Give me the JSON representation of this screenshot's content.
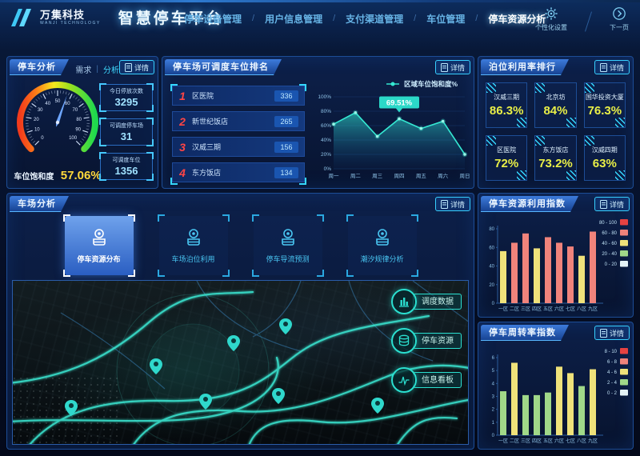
{
  "header": {
    "brand": "万集科技",
    "brand_sub": "WANJI TECHNOLOGY",
    "title": "智慧停车平台",
    "nav_separator": "/",
    "nav": [
      {
        "label": "停车设备管理",
        "active": false
      },
      {
        "label": "用户信息管理",
        "active": false
      },
      {
        "label": "支付渠道管理",
        "active": false
      },
      {
        "label": "车位管理",
        "active": false
      },
      {
        "label": "停车资源分析",
        "active": true
      }
    ],
    "actions": [
      {
        "icon": "gear-icon",
        "label": "个性化设置"
      },
      {
        "icon": "next-page-icon",
        "label": "下一页"
      }
    ]
  },
  "accent_colors": {
    "cyan": "#35d8ff",
    "teal": "#2fe2cc",
    "yellow_value": "#e9ef47",
    "gauge_value_yellow": "#ffd93b",
    "rank_red": "#ff4545"
  },
  "panels": {
    "parking_analysis": {
      "title": "停车分析",
      "tabs": [
        {
          "label": "需求",
          "active": false
        },
        {
          "label": "分析",
          "active": true
        }
      ],
      "tab_separator": "|",
      "detail_label": "详情",
      "gauge": {
        "label": "车位饱和度",
        "value": 57.06,
        "display": "57.06%",
        "min": 0,
        "max": 100
      },
      "stats": [
        {
          "label": "今日停放次数",
          "value": "3295"
        },
        {
          "label": "可调度停车场",
          "value": "31"
        },
        {
          "label": "可调度车位",
          "value": "1356"
        }
      ]
    },
    "dispatch_ranking": {
      "title": "停车场可调度车位排名",
      "detail_label": "详情",
      "items": [
        {
          "rank": "1",
          "name": "区医院",
          "value": "336"
        },
        {
          "rank": "2",
          "name": "新世纪饭店",
          "value": "265"
        },
        {
          "rank": "3",
          "name": "汉威三期",
          "value": "156"
        },
        {
          "rank": "4",
          "name": "东方饭店",
          "value": "134"
        }
      ]
    },
    "berth_ranking": {
      "title": "泊位利用率排行",
      "detail_label": "详情",
      "items": [
        {
          "name": "汉威三期",
          "value": "86.3%"
        },
        {
          "name": "北京坊",
          "value": "84%"
        },
        {
          "name": "国华投资大厦",
          "value": "76.3%"
        },
        {
          "name": "区医院",
          "value": "72%"
        },
        {
          "name": "东方饭店",
          "value": "73.2%"
        },
        {
          "name": "汉威四期",
          "value": "63%"
        }
      ]
    },
    "lot_analysis": {
      "title": "车场分析",
      "detail_label": "详情",
      "buttons": [
        {
          "label": "停车资源分布",
          "active": true
        },
        {
          "label": "车场泊位利用",
          "active": false
        },
        {
          "label": "停车导流预测",
          "active": false
        },
        {
          "label": "潮汐规律分析",
          "active": false
        }
      ],
      "map_buttons": [
        {
          "icon": "bar-chart-icon",
          "label": "调度数据"
        },
        {
          "icon": "database-icon",
          "label": "停车资源"
        },
        {
          "icon": "pulse-icon",
          "label": "信息看板"
        }
      ]
    },
    "resource_index": {
      "title": "停车资源利用指数",
      "detail_label": "详情"
    },
    "turnover_index": {
      "title": "停车周转率指数",
      "detail_label": "详情"
    }
  },
  "chart_data": [
    {
      "id": "region_saturation_trend",
      "type": "area",
      "title": "区域车位饱和度%",
      "legend": "区域车位饱和度%",
      "categories": [
        "周一",
        "周二",
        "周三",
        "周四",
        "周五",
        "周六",
        "周日"
      ],
      "values": [
        62,
        78,
        45,
        69.51,
        56,
        66,
        20
      ],
      "ylim": [
        0,
        100
      ],
      "yticks": [
        0,
        20,
        40,
        60,
        80,
        100
      ],
      "ytick_suffix": "%",
      "grid": true,
      "annotation": {
        "index": 3,
        "text": "69.51%"
      },
      "line_color": "#35e8d2",
      "tooltip_color": "#2bd8c8"
    },
    {
      "id": "parking_resource_index",
      "type": "bar",
      "title": "停车资源利用指数",
      "categories": [
        "一区",
        "二区",
        "三区",
        "四区",
        "五区",
        "六区",
        "七区",
        "八区",
        "九区"
      ],
      "values": [
        56,
        65,
        75,
        59,
        71,
        65,
        61,
        51,
        77
      ],
      "ylim": [
        0,
        80
      ],
      "yticks": [
        0,
        20,
        40,
        60,
        80
      ],
      "grid": false,
      "legend_position": "right",
      "legend": [
        {
          "label": "80 - 100",
          "color": "#e64242"
        },
        {
          "label": "60 - 80",
          "color": "#f0837b"
        },
        {
          "label": "40 - 60",
          "color": "#efe27a"
        },
        {
          "label": "20 - 40",
          "color": "#a0d888"
        },
        {
          "label": "0 - 20",
          "color": "#e4f2f6"
        }
      ],
      "buckets": [
        {
          "max": 20,
          "color": "#e4f2f6"
        },
        {
          "max": 40,
          "color": "#a0d888"
        },
        {
          "max": 60,
          "color": "#efe27a"
        },
        {
          "max": 80,
          "color": "#f0837b"
        },
        {
          "max": 100,
          "color": "#e64242"
        }
      ]
    },
    {
      "id": "parking_turnover_index",
      "type": "bar",
      "title": "停车周转率指数",
      "categories": [
        "一区",
        "二区",
        "三区",
        "四区",
        "五区",
        "六区",
        "七区",
        "八区",
        "九区"
      ],
      "values": [
        3.4,
        5.6,
        3.1,
        3.1,
        3.3,
        5.3,
        4.8,
        3.8,
        5.1
      ],
      "ylim": [
        0,
        6
      ],
      "yticks": [
        0,
        1,
        2,
        3,
        4,
        5,
        6
      ],
      "grid": false,
      "legend_position": "right",
      "legend": [
        {
          "label": "8 - 10",
          "color": "#e64242"
        },
        {
          "label": "6 - 8",
          "color": "#f0837b"
        },
        {
          "label": "4 - 6",
          "color": "#efe27a"
        },
        {
          "label": "2 - 4",
          "color": "#a0d888"
        },
        {
          "label": "0 - 2",
          "color": "#e4f2f6"
        }
      ],
      "buckets": [
        {
          "max": 2,
          "color": "#e4f2f6"
        },
        {
          "max": 4,
          "color": "#a0d888"
        },
        {
          "max": 6,
          "color": "#efe27a"
        },
        {
          "max": 8,
          "color": "#f0837b"
        },
        {
          "max": 10,
          "color": "#e64242"
        }
      ]
    }
  ]
}
